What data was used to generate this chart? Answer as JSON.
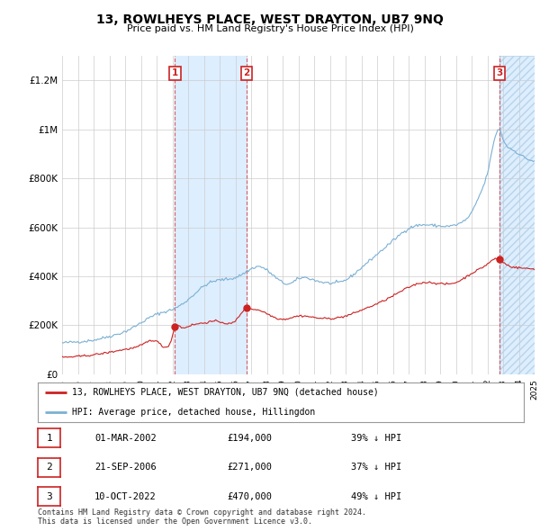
{
  "title": "13, ROWLHEYS PLACE, WEST DRAYTON, UB7 9NQ",
  "subtitle": "Price paid vs. HM Land Registry's House Price Index (HPI)",
  "ylabel_ticks": [
    "£0",
    "£200K",
    "£400K",
    "£600K",
    "£800K",
    "£1M",
    "£1.2M"
  ],
  "ytick_values": [
    0,
    200000,
    400000,
    600000,
    800000,
    1000000,
    1200000
  ],
  "ylim": [
    0,
    1300000
  ],
  "hpi_color": "#7ab0d4",
  "price_color": "#cc2222",
  "shaded_color": "#ddeeff",
  "hatch_color": "#c8dff0",
  "vline_color": "#cc2222",
  "sale_prices": [
    194000,
    271000,
    470000
  ],
  "sale_labels": [
    "1",
    "2",
    "3"
  ],
  "legend_label_price": "13, ROWLHEYS PLACE, WEST DRAYTON, UB7 9NQ (detached house)",
  "legend_label_hpi": "HPI: Average price, detached house, Hillingdon",
  "table_rows": [
    {
      "num": "1",
      "date": "01-MAR-2002",
      "price": "£194,000",
      "pct": "39% ↓ HPI"
    },
    {
      "num": "2",
      "date": "21-SEP-2006",
      "price": "£271,000",
      "pct": "37% ↓ HPI"
    },
    {
      "num": "3",
      "date": "10-OCT-2022",
      "price": "£470,000",
      "pct": "49% ↓ HPI"
    }
  ],
  "footer": "Contains HM Land Registry data © Crown copyright and database right 2024.\nThis data is licensed under the Open Government Licence v3.0.",
  "shaded_regions": [
    {
      "start": 2002.17,
      "end": 2006.72,
      "hatch": false
    },
    {
      "start": 2022.78,
      "end": 2025.0,
      "hatch": true
    }
  ],
  "vline_x": [
    2002.17,
    2006.72,
    2022.78
  ],
  "xlim": [
    1995,
    2025
  ],
  "xtick_years": [
    1995,
    1996,
    1997,
    1998,
    1999,
    2000,
    2001,
    2002,
    2003,
    2004,
    2005,
    2006,
    2007,
    2008,
    2009,
    2010,
    2011,
    2012,
    2013,
    2014,
    2015,
    2016,
    2017,
    2018,
    2019,
    2020,
    2021,
    2022,
    2023,
    2024,
    2025
  ],
  "background_color": "#ffffff",
  "grid_color": "#cccccc"
}
